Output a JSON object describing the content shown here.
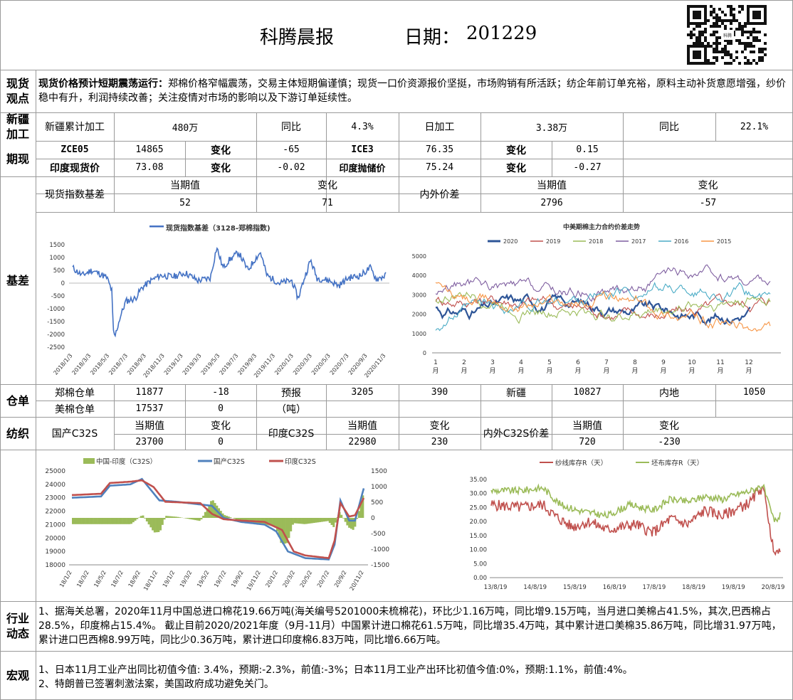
{
  "header": {
    "title": "科腾晨报",
    "date_label": "日期：",
    "date_value": "201229",
    "qr_caption": "科腾"
  },
  "spot_view": {
    "section": "现货观点",
    "headline": "现货价格预计短期震荡运行：",
    "body": "郑棉价格窄幅震荡，交易主体短期偏谨慎；现货一口价资源报价坚挺，市场购销有所活跃；纺企年前订单充裕，原料主动补货意愿增强，纱价稳中有升，利润持续改善；关注疫情对市场的影响以及下游订单延续性。"
  },
  "xinjiang": {
    "section": "新疆加工",
    "cum_label": "新疆累计加工",
    "cum_value": "480万",
    "yoy_label": "同比",
    "yoy_value": "4.3%",
    "daily_label": "日加工",
    "daily_value": "3.38万",
    "yoy2_label": "同比",
    "yoy2_value": "22.1%"
  },
  "futures": {
    "section": "期现",
    "row1": [
      "ZCE05",
      "14865",
      "变化",
      "-65",
      "ICE3",
      "76.35",
      "变化",
      "0.15"
    ],
    "row2": [
      "印度现货价",
      "73.08",
      "变化",
      "-0.02",
      "印度抛储价",
      "75.24",
      "变化",
      "-0.27"
    ]
  },
  "basis": {
    "section": "基差",
    "h1": [
      "现货指数基差",
      "当期值",
      "变化",
      "内外价差",
      "当期值",
      "变化"
    ],
    "v1": [
      "52",
      "71",
      "2796",
      "-57"
    ]
  },
  "chart_left": {
    "legend": "现货指数基差（3128-郑棉指数)",
    "y_ticks": [
      "1500",
      "1000",
      "500",
      "0",
      "-500",
      "-1000",
      "-1500",
      "-2000",
      "-2500"
    ],
    "x_ticks": [
      "2018/1/3",
      "2018/3/3",
      "2018/5/3",
      "2018/7/3",
      "2018/9/3",
      "2018/11/3",
      "2019/1/3",
      "2019/3/3",
      "2019/5/3",
      "2019/7/3",
      "2019/9/3",
      "2019/11/3",
      "2020/1/3",
      "2020/3/3",
      "2020/5/3",
      "2020/7/3",
      "2020/9/3",
      "2020/11/3"
    ],
    "color": "#4472c4"
  },
  "chart_right": {
    "title": "中美期棉主力合约价差走势",
    "legend": [
      "2020",
      "2019",
      "2018",
      "2017",
      "2016",
      "2015"
    ],
    "colors": [
      "#2e5597",
      "#c0504d",
      "#9bbb59",
      "#7f5fa0",
      "#4bacc6",
      "#f79646"
    ],
    "y_ticks": [
      "5000",
      "4000",
      "3000",
      "2000",
      "1000",
      "0"
    ],
    "x_ticks": [
      "1\n月",
      "2\n月",
      "3\n月",
      "4\n月",
      "5\n月",
      "6\n月",
      "7\n月",
      "8\n月",
      "9\n月",
      "10\n月",
      "11\n月",
      "12\n月"
    ]
  },
  "warehouse": {
    "section": "仓单",
    "r1": [
      "郑棉仓单",
      "11877",
      "-18",
      "预报",
      "3205",
      "390",
      "新疆",
      "10827",
      "内地",
      "1050"
    ],
    "r2": [
      "美棉仓单",
      "17537",
      "0",
      "（吨）"
    ]
  },
  "textile": {
    "section": "纺织",
    "h": [
      "国产C32S",
      "当期值",
      "变化",
      "印度C32S",
      "当期值",
      "变化",
      "内外C32S价差",
      "当期值",
      "变化"
    ],
    "v": [
      "23700",
      "0",
      "22980",
      "230",
      "720",
      "-230"
    ]
  },
  "chart_c32": {
    "legend": [
      "中国-印度（C32S）",
      "国产C32S",
      "印度C32S"
    ],
    "colors": [
      "#9bbb59",
      "#4f81bd",
      "#c0504d"
    ],
    "y_left": [
      "25000",
      "24000",
      "23000",
      "22000",
      "21000",
      "20000",
      "19000",
      "18000"
    ],
    "y_right": [
      "1500",
      "1000",
      "500",
      "0",
      "-500",
      "-1000",
      "-1500"
    ],
    "x_ticks": [
      "18/1/2",
      "18/3/2",
      "18/5/2",
      "18/7/2",
      "18/9/2",
      "18/11/2",
      "19/1/2",
      "19/3/2",
      "19/5/2",
      "19/7/2",
      "19/9/2",
      "19/11/2",
      "20/1/2",
      "20/3/2",
      "20/5/2",
      "20/7/2",
      "20/9/2",
      "20/11/2"
    ]
  },
  "chart_stock": {
    "legend": [
      "纱线库存R（天）",
      "坯布库存R（天）"
    ],
    "colors": [
      "#c0504d",
      "#9bbb59"
    ],
    "y_ticks": [
      "35.00",
      "30.00",
      "25.00",
      "20.00",
      "15.00",
      "10.00",
      "5.00",
      "0.00"
    ],
    "x_ticks": [
      "13/8/19",
      "14/8/19",
      "15/8/19",
      "16/8/19",
      "17/8/19",
      "18/8/19",
      "19/8/19",
      "20/8/19"
    ]
  },
  "industry": {
    "section": "行业动态",
    "text": "1、据海关总署，2020年11月中国总进口棉花19.66万吨(海关编号5201000未梳棉花)，环比少1.16万吨，同比增9.15万吨，当月进口美棉占41.5%，其次,巴西棉占28.5%，印度棉占15.4%。  截止目前2020/2021年度（9月-11月）中国累计进口棉花61.5万吨，同比增35.4万吨，其中累计进口美棉35.86万吨，同比增31.97万吨，累计进口巴西棉8.99万吨，同比少0.36万吨，累计进口印度棉6.83万吨，同比增6.66万吨。"
  },
  "macro": {
    "section": "宏观",
    "line1": "1、日本11月工业产出同比初值今值: 3.4%，预期:-2.3%，前值:-3%；日本11月工业产出环比初值今值:0%，预期:1.1%，前值:4%。",
    "line2": "2、特朗普已签署刺激法案，美国政府成功避免关门。"
  }
}
